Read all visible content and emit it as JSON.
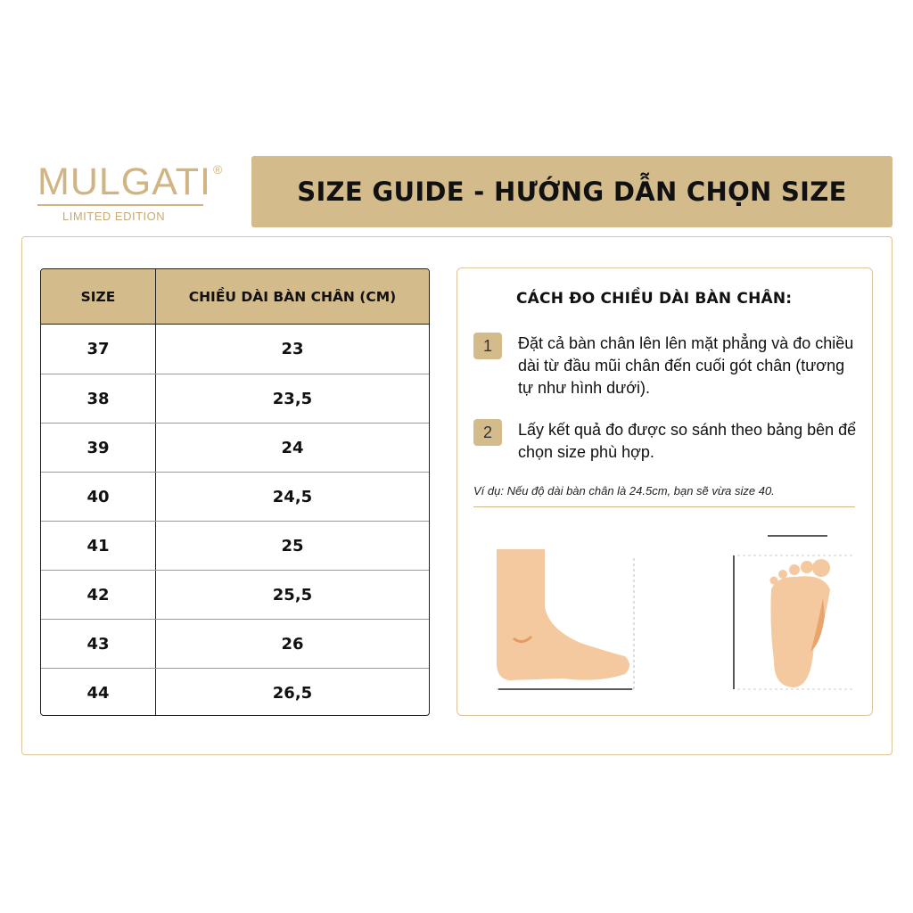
{
  "logo": {
    "name": "MULGATI",
    "registered": "®",
    "subtitle": "LIMITED EDITION"
  },
  "title": "SIZE GUIDE - HƯỚNG DẪN CHỌN SIZE",
  "table": {
    "headers": [
      "SIZE",
      "CHIỀU DÀI BÀN CHÂN (CM)"
    ],
    "rows": [
      [
        "37",
        "23"
      ],
      [
        "38",
        "23,5"
      ],
      [
        "39",
        "24"
      ],
      [
        "40",
        "24,5"
      ],
      [
        "41",
        "25"
      ],
      [
        "42",
        "25,5"
      ],
      [
        "43",
        "26"
      ],
      [
        "44",
        "26,5"
      ]
    ]
  },
  "guide": {
    "heading": "CÁCH ĐO CHIỀU DÀI BÀN CHÂN:",
    "steps": [
      {
        "num": "1",
        "text": "Đặt cả bàn chân lên lên mặt phẳng và đo chiều dài từ đầu mũi chân đến cuối gót chân (tương tự như hình dưới)."
      },
      {
        "num": "2",
        "text": "Lấy kết quả đo được so sánh theo bảng bên để chọn size phù hợp."
      }
    ],
    "example": "Ví dụ: Nếu độ dài bàn chân là 24.5cm, bạn sẽ vừa size 40."
  },
  "colors": {
    "gold": "#d3bb8b",
    "skin": "#f5c9a0"
  }
}
